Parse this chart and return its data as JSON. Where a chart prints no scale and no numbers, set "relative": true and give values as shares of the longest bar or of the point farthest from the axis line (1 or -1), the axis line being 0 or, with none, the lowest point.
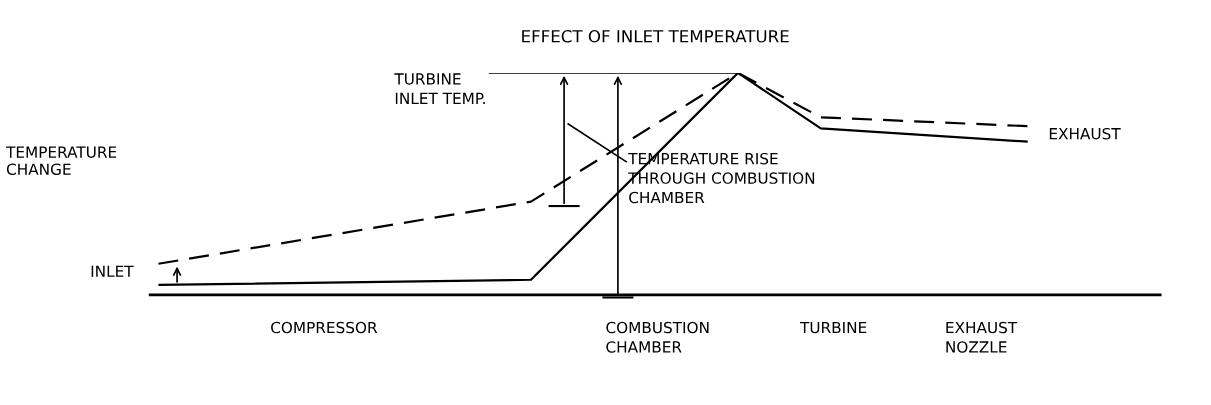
{
  "chart_data": {
    "type": "line",
    "title": "EFFECT OF INLET TEMPERATURE",
    "ylabel": "TEMPERATURE\nCHANGE",
    "relative": true,
    "tick_labels": false,
    "marker": "none",
    "categories": [
      null,
      null,
      null,
      null,
      null,
      null,
      null,
      null,
      null,
      null,
      null,
      null,
      null,
      null,
      null,
      null,
      null,
      null,
      null,
      null,
      null,
      null
    ],
    "series": [
      {
        "color": "#000000",
        "line_style": "solid",
        "values": [
          0.045,
          null,
          null,
          null,
          null,
          null,
          null,
          null,
          null,
          0.068,
          null,
          null,
          null,
          null,
          1,
          null,
          0.75,
          null,
          null,
          null,
          null,
          0.69
        ]
      },
      {
        "color": "#000000",
        "line_style": "dashed",
        "values": [
          0.14,
          null,
          null,
          null,
          null,
          null,
          null,
          null,
          null,
          0.42,
          null,
          null,
          null,
          null,
          1,
          null,
          0.8,
          null,
          null,
          null,
          null,
          0.76
        ]
      }
    ],
    "annotations": [
      "INLET",
      "TURBINE\nINLET TEMP.",
      "EXHAUST",
      "TEMPERATURE RISE\nTHROUGH COMBUSTION\nCHAMBER",
      "COMPRESSOR",
      "COMBUSTION\nCHAMBER",
      "TURBINE",
      "EXHAUST\nNOZZLE"
    ]
  }
}
